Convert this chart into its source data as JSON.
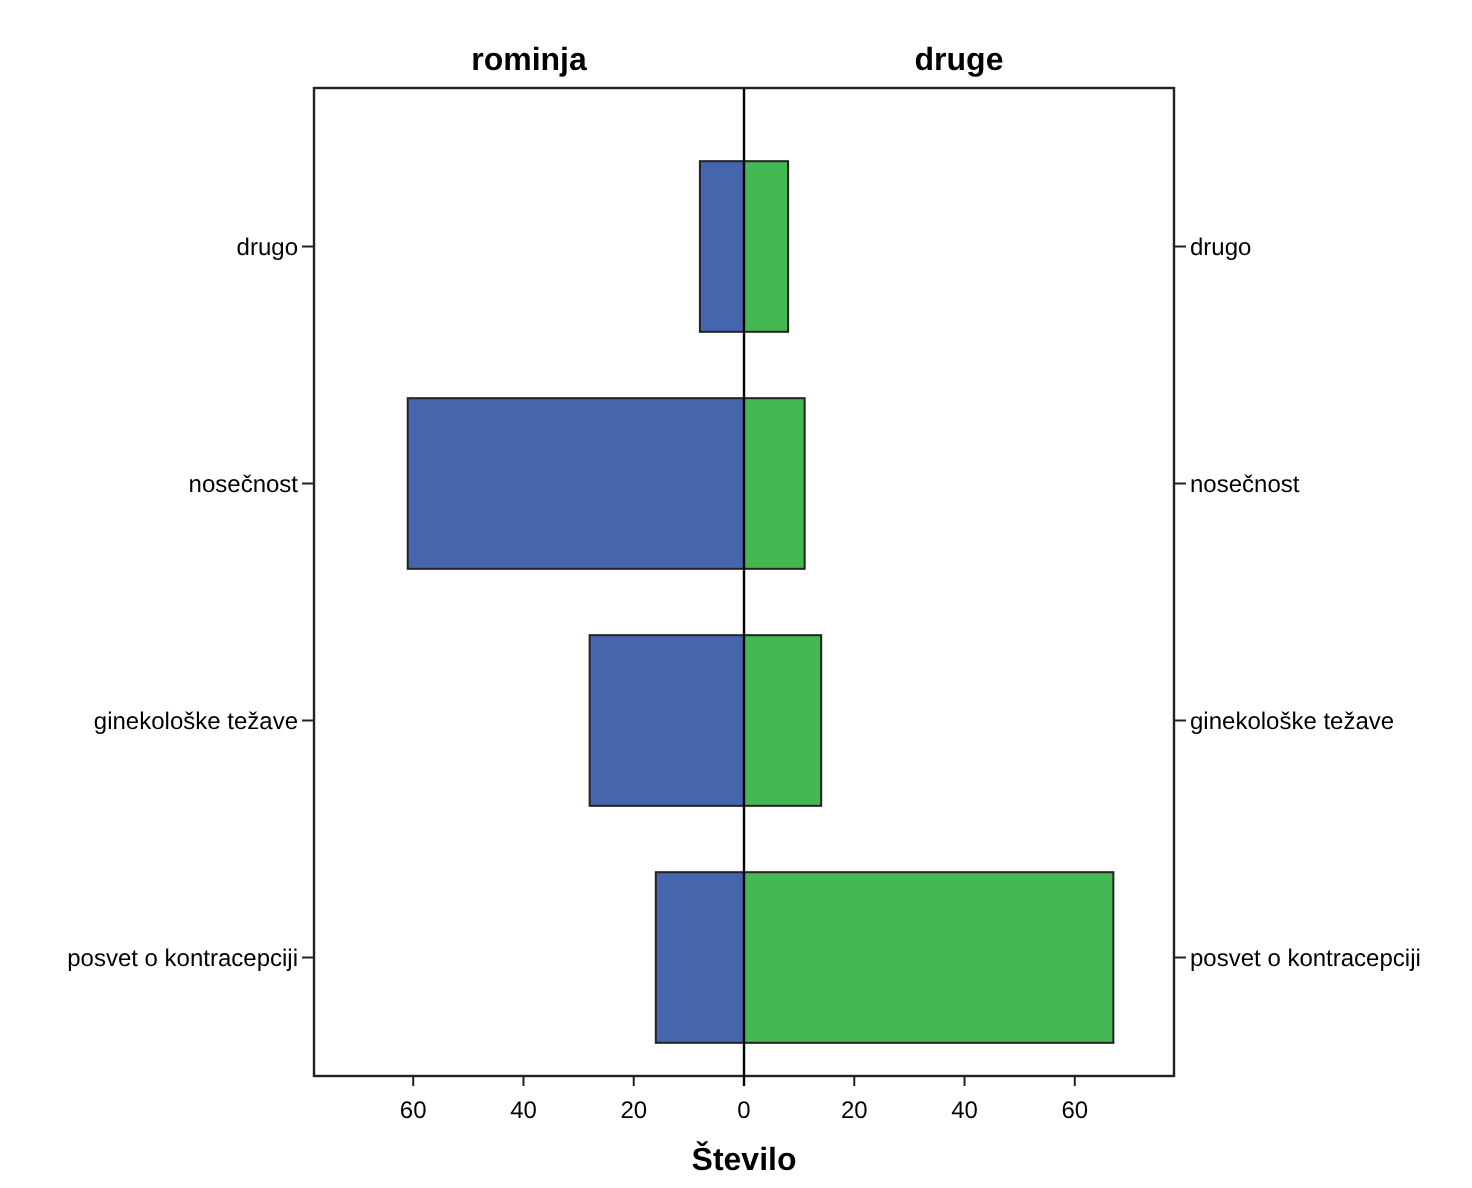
{
  "chart_data": [
    {
      "type": "bar",
      "orientation": "horizontal",
      "title": "rominja",
      "xlabel": "Število",
      "categories": [
        "drugo",
        "nosečnost",
        "ginekološke težave",
        "posvet o kontracepciji"
      ],
      "values": [
        8,
        61,
        28,
        16
      ],
      "color": "#4565ad",
      "xlim": [
        78,
        0
      ],
      "xticks": [
        60,
        40,
        20,
        0
      ],
      "grid": false
    },
    {
      "type": "bar",
      "orientation": "horizontal",
      "title": "druge",
      "categories": [
        "drugo",
        "nosečnost",
        "ginekološke težave",
        "posvet o kontracepciji"
      ],
      "values": [
        8,
        11,
        14,
        67
      ],
      "color": "#45b853",
      "xlim": [
        0,
        78
      ],
      "xticks": [
        20,
        40,
        60
      ],
      "grid": false
    }
  ]
}
